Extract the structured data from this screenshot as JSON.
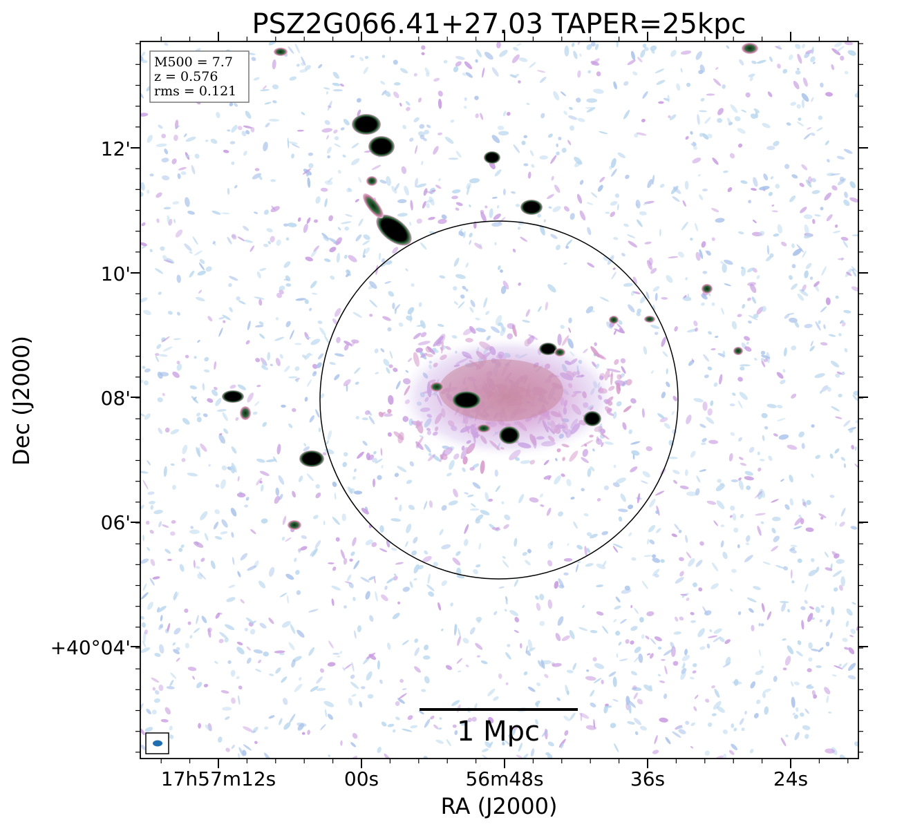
{
  "title": "PSZ2G066.41+27.03 TAPER=25kpc",
  "axes": {
    "xlabel": "RA (J2000)",
    "ylabel": "Dec (J2000)",
    "x_ticks": [
      "17h57m12s",
      "00s",
      "56m48s",
      "36s",
      "24s"
    ],
    "y_ticks": [
      "12'",
      "10'",
      "08'",
      "06'",
      "+40°04'"
    ]
  },
  "info_box": {
    "line1": "M500 = 7.7",
    "line2": "z = 0.576",
    "line3": "rms = 0.121"
  },
  "scale_bar": {
    "label": "1 Mpc"
  },
  "colors": {
    "noise_light": "#b9d7ee",
    "noise_blue": "#a9c2ea",
    "noise_purple": "#c79be0",
    "emission_pink": "#d69acb",
    "emission_rose": "#c47a9c",
    "source_core": "#000000",
    "source_ring": "#2f6b3c",
    "beam": "#1f6fb0"
  }
}
